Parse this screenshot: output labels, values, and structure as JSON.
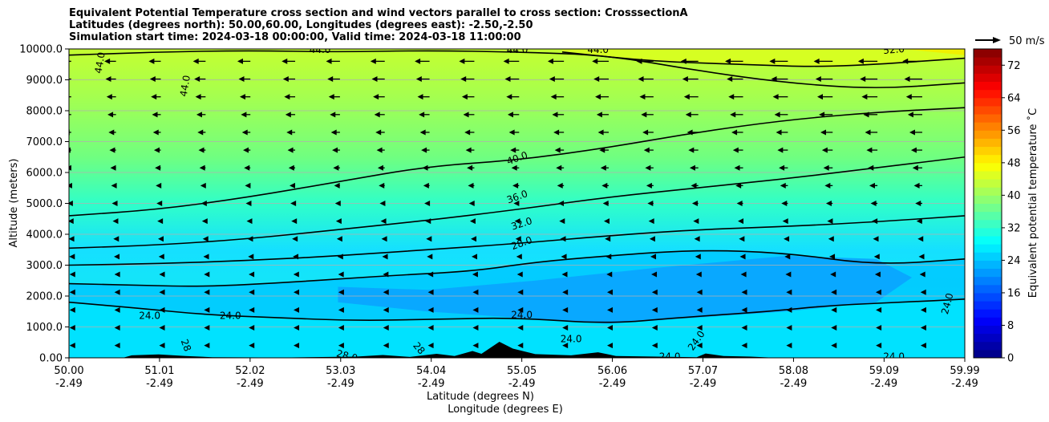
{
  "title_lines": [
    "Equivalent Potential Temperature cross section and wind vectors parallel to cross section: CrosssectionA",
    "Latitudes (degrees north): 50.00,60.00, Longitudes (degrees east): -2.50,-2.50",
    "Simulation start time: 2024-03-18 00:00:00, Valid time: 2024-03-18 11:00:00"
  ],
  "chart_data": {
    "type": "heatmap",
    "subtype": "filled contour cross section with wind vectors",
    "ylabel": "Altitude (meters)",
    "xlabel_lines": [
      "Latitude (degrees N)",
      "Longitude (degrees E)"
    ],
    "x_ticks": [
      {
        "lat": "50.00",
        "lon": "-2.49"
      },
      {
        "lat": "51.01",
        "lon": "-2.49"
      },
      {
        "lat": "52.02",
        "lon": "-2.49"
      },
      {
        "lat": "53.03",
        "lon": "-2.49"
      },
      {
        "lat": "54.04",
        "lon": "-2.49"
      },
      {
        "lat": "55.05",
        "lon": "-2.49"
      },
      {
        "lat": "56.06",
        "lon": "-2.49"
      },
      {
        "lat": "57.07",
        "lon": "-2.49"
      },
      {
        "lat": "58.08",
        "lon": "-2.49"
      },
      {
        "lat": "59.09",
        "lon": "-2.49"
      },
      {
        "lat": "59.99",
        "lon": "-2.49"
      }
    ],
    "xlim": [
      50.0,
      59.99
    ],
    "y_ticks": [
      "0.00",
      "1000.0",
      "2000.0",
      "3000.0",
      "4000.0",
      "5000.0",
      "6000.0",
      "7000.0",
      "8000.0",
      "9000.0",
      "10000.0"
    ],
    "ylim": [
      0,
      10000
    ],
    "grid": "horizontal",
    "colorbar": {
      "label": "Equivalent potential temperature $^\\circ$C",
      "label_display": "Equivalent potential temperature ˚C",
      "range": [
        0,
        76
      ],
      "ticks": [
        "0",
        "8",
        "16",
        "24",
        "32",
        "40",
        "48",
        "56",
        "64",
        "72"
      ],
      "colormap": "jet"
    },
    "contour_labels": [
      "44.0",
      "44.0",
      "44.0",
      "44.0",
      "44.0",
      "52.0",
      "40.0",
      "36.0",
      "32.0",
      "28.0",
      "24.0",
      "24.0",
      "24.0",
      "24.0",
      "24.0",
      "24.0",
      "24.0",
      "28",
      "28.0",
      "28",
      "24.0"
    ],
    "contours": [
      {
        "level": 24,
        "points": [
          [
            50.0,
            1800
          ],
          [
            50.8,
            1600
          ],
          [
            51.5,
            1400
          ],
          [
            52.3,
            1300
          ],
          [
            53.2,
            1200
          ],
          [
            54.1,
            1250
          ],
          [
            55.0,
            1300
          ],
          [
            56.0,
            1100
          ],
          [
            56.8,
            1300
          ],
          [
            57.8,
            1500
          ],
          [
            58.5,
            1700
          ],
          [
            59.3,
            1800
          ],
          [
            59.99,
            1900
          ]
        ]
      },
      {
        "level": 28,
        "points": [
          [
            50.0,
            2400
          ],
          [
            50.8,
            2350
          ],
          [
            51.5,
            2300
          ],
          [
            52.5,
            2450
          ],
          [
            53.5,
            2650
          ],
          [
            54.5,
            2800
          ],
          [
            55.2,
            3100
          ],
          [
            56.0,
            3300
          ],
          [
            57.0,
            3500
          ],
          [
            58.0,
            3400
          ],
          [
            59.0,
            3000
          ],
          [
            59.99,
            3200
          ]
        ]
      },
      {
        "level": 32,
        "points": [
          [
            50.0,
            3000
          ],
          [
            51.0,
            3050
          ],
          [
            52.0,
            3150
          ],
          [
            53.0,
            3300
          ],
          [
            54.0,
            3500
          ],
          [
            55.0,
            3700
          ],
          [
            56.0,
            3950
          ],
          [
            57.0,
            4150
          ],
          [
            58.0,
            4250
          ],
          [
            59.0,
            4400
          ],
          [
            59.99,
            4600
          ]
        ]
      },
      {
        "level": 36,
        "points": [
          [
            50.0,
            3550
          ],
          [
            51.0,
            3650
          ],
          [
            52.0,
            3850
          ],
          [
            53.0,
            4150
          ],
          [
            54.0,
            4450
          ],
          [
            55.0,
            4800
          ],
          [
            56.0,
            5200
          ],
          [
            57.0,
            5500
          ],
          [
            58.0,
            5800
          ],
          [
            59.0,
            6150
          ],
          [
            59.99,
            6500
          ]
        ]
      },
      {
        "level": 40,
        "points": [
          [
            50.0,
            4600
          ],
          [
            51.0,
            4800
          ],
          [
            52.0,
            5200
          ],
          [
            53.0,
            5700
          ],
          [
            54.0,
            6200
          ],
          [
            55.0,
            6400
          ],
          [
            56.0,
            6800
          ],
          [
            57.0,
            7300
          ],
          [
            58.0,
            7700
          ],
          [
            59.0,
            7950
          ],
          [
            59.99,
            8100
          ]
        ]
      },
      {
        "level": 44,
        "points": [
          [
            50.0,
            9800
          ],
          [
            51.0,
            9900
          ],
          [
            52.0,
            9950
          ],
          [
            53.0,
            9900
          ],
          [
            54.0,
            9950
          ],
          [
            55.0,
            9900
          ],
          [
            56.0,
            9800
          ],
          [
            57.0,
            9300
          ],
          [
            58.0,
            8900
          ],
          [
            59.0,
            8700
          ],
          [
            59.99,
            8900
          ]
        ]
      },
      {
        "level": 48,
        "points": [
          [
            55.5,
            9900
          ],
          [
            56.5,
            9600
          ],
          [
            57.5,
            9500
          ],
          [
            58.5,
            9400
          ],
          [
            59.99,
            9700
          ]
        ]
      }
    ],
    "wind_reference": {
      "label": "50 m/s",
      "speed": 50
    },
    "wind_field": {
      "direction": "negative x (towards lower latitude)",
      "max_speed": 45
    }
  }
}
